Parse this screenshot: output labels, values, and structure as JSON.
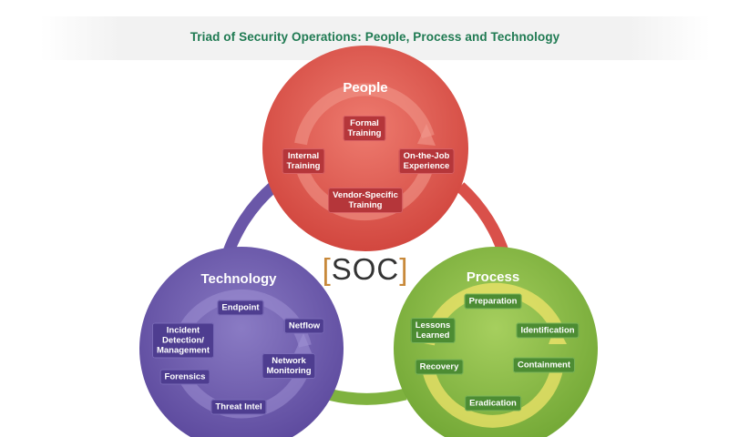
{
  "title": "Triad of Security Operations: People, Process and Technology",
  "center": {
    "label": "SOC"
  },
  "people": {
    "title": "People",
    "items": [
      "Formal\nTraining",
      "Internal\nTraining",
      "On-the-Job\nExperience",
      "Vendor-Specific\nTraining"
    ],
    "color": "#d9504a"
  },
  "technology": {
    "title": "Technology",
    "items": [
      "Endpoint",
      "Netflow",
      "Incident\nDetection/\nManagement",
      "Network\nMonitoring",
      "Forensics",
      "Threat Intel"
    ],
    "color": "#6a57a8"
  },
  "process": {
    "title": "Process",
    "items": [
      "Preparation",
      "Identification",
      "Lessons\nLearned",
      "Containment",
      "Recovery",
      "Eradication"
    ],
    "color": "#7fb23f"
  },
  "connector_colors": {
    "people_process": "#d9504a",
    "process_technology": "#7fb23f",
    "technology_people": "#6a57a8"
  }
}
